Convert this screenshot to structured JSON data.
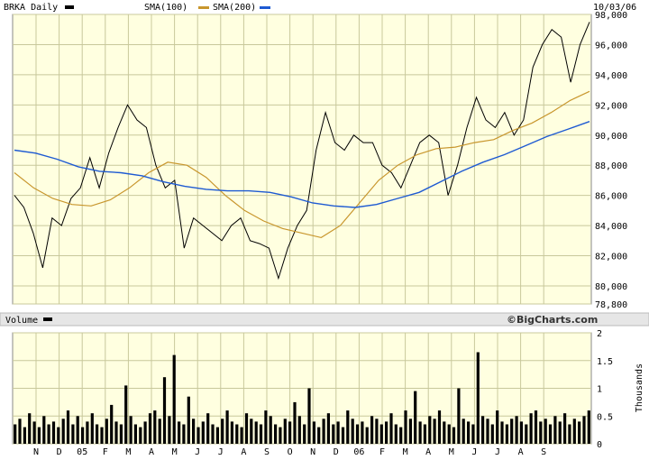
{
  "header": {
    "symbol_label": "BRKA Daily",
    "sma100_label": "SMA(100)",
    "sma200_label": "SMA(200)",
    "date": "10/03/06"
  },
  "volume_panel": {
    "label": "Volume",
    "brand": "©BigCharts.com",
    "unit_label": "Thousands"
  },
  "colors": {
    "background": "#ffffe0",
    "grid": "#c8c89b",
    "price": "#000000",
    "sma100": "#c8962d",
    "sma200": "#1e5ad2",
    "header_bg": "#e6e6e6",
    "border": "#888888"
  },
  "chart_data": [
    {
      "type": "line",
      "name": "price",
      "x_ticks": [
        "N",
        "D",
        "05",
        "F",
        "M",
        "A",
        "M",
        "J",
        "J",
        "A",
        "S",
        "O",
        "N",
        "D",
        "06",
        "F",
        "M",
        "A",
        "M",
        "J",
        "J",
        "A",
        "S"
      ],
      "y_ticks": [
        "78,800",
        "80,000",
        "82,000",
        "84,000",
        "86,000",
        "88,000",
        "90,000",
        "92,000",
        "94,000",
        "96,000",
        "98,000"
      ],
      "ylim": [
        78800,
        98000
      ],
      "grid": true,
      "series": [
        {
          "key": "close",
          "values": [
            86000,
            85200,
            83500,
            81200,
            84500,
            84000,
            85800,
            86500,
            88500,
            86500,
            88800,
            90500,
            92000,
            91000,
            90500,
            88000,
            86500,
            87000,
            82500,
            84500,
            84000,
            83500,
            83000,
            84000,
            84500,
            83000,
            82800,
            82500,
            80500,
            82500,
            84000,
            85000,
            89000,
            91500,
            89500,
            89000,
            90000,
            89500,
            89500,
            88000,
            87500,
            86500,
            88000,
            89500,
            90000,
            89500,
            86000,
            88000,
            90500,
            92500,
            91000,
            90500,
            91500,
            90000,
            91000,
            94500,
            96000,
            97000,
            96500,
            93500,
            96000,
            97500
          ]
        },
        {
          "key": "sma100",
          "values": [
            87500,
            86500,
            85800,
            85400,
            85300,
            85700,
            86500,
            87500,
            88200,
            88000,
            87200,
            86000,
            85000,
            84300,
            83800,
            83500,
            83200,
            84000,
            85500,
            87000,
            88000,
            88700,
            89100,
            89200,
            89500,
            89700,
            90300,
            90800,
            91500,
            92300,
            92900
          ]
        },
        {
          "key": "sma200",
          "values": [
            89000,
            88800,
            88400,
            87900,
            87600,
            87500,
            87300,
            86900,
            86600,
            86400,
            86300,
            86300,
            86200,
            85900,
            85500,
            85300,
            85200,
            85400,
            85800,
            86200,
            86900,
            87600,
            88200,
            88700,
            89300,
            89900,
            90400,
            90900
          ]
        }
      ]
    },
    {
      "type": "bar",
      "name": "volume",
      "y_ticks": [
        "0",
        "0.5",
        "1",
        "1.5",
        "2"
      ],
      "ylim": [
        0,
        2
      ],
      "ylabel": "Thousands",
      "grid": true,
      "values": [
        0.35,
        0.45,
        0.3,
        0.55,
        0.4,
        0.3,
        0.5,
        0.35,
        0.4,
        0.3,
        0.45,
        0.6,
        0.35,
        0.5,
        0.3,
        0.4,
        0.55,
        0.35,
        0.3,
        0.45,
        0.7,
        0.4,
        0.35,
        1.05,
        0.5,
        0.35,
        0.3,
        0.4,
        0.55,
        0.6,
        0.45,
        1.2,
        0.5,
        1.6,
        0.4,
        0.35,
        0.85,
        0.45,
        0.3,
        0.4,
        0.55,
        0.35,
        0.3,
        0.45,
        0.6,
        0.4,
        0.35,
        0.3,
        0.55,
        0.45,
        0.4,
        0.35,
        0.6,
        0.5,
        0.35,
        0.3,
        0.45,
        0.4,
        0.75,
        0.5,
        0.35,
        1.0,
        0.4,
        0.3,
        0.45,
        0.55,
        0.35,
        0.4,
        0.3,
        0.6,
        0.45,
        0.35,
        0.4,
        0.3,
        0.5,
        0.45,
        0.35,
        0.4,
        0.55,
        0.35,
        0.3,
        0.6,
        0.45,
        0.95,
        0.4,
        0.35,
        0.5,
        0.45,
        0.6,
        0.4,
        0.35,
        0.3,
        1.0,
        0.45,
        0.4,
        0.35,
        1.65,
        0.5,
        0.45,
        0.35,
        0.6,
        0.4,
        0.35,
        0.45,
        0.5,
        0.4,
        0.35,
        0.55,
        0.6,
        0.4,
        0.45,
        0.35,
        0.5,
        0.4,
        0.55,
        0.35,
        0.45,
        0.4,
        0.5,
        0.6
      ]
    }
  ]
}
